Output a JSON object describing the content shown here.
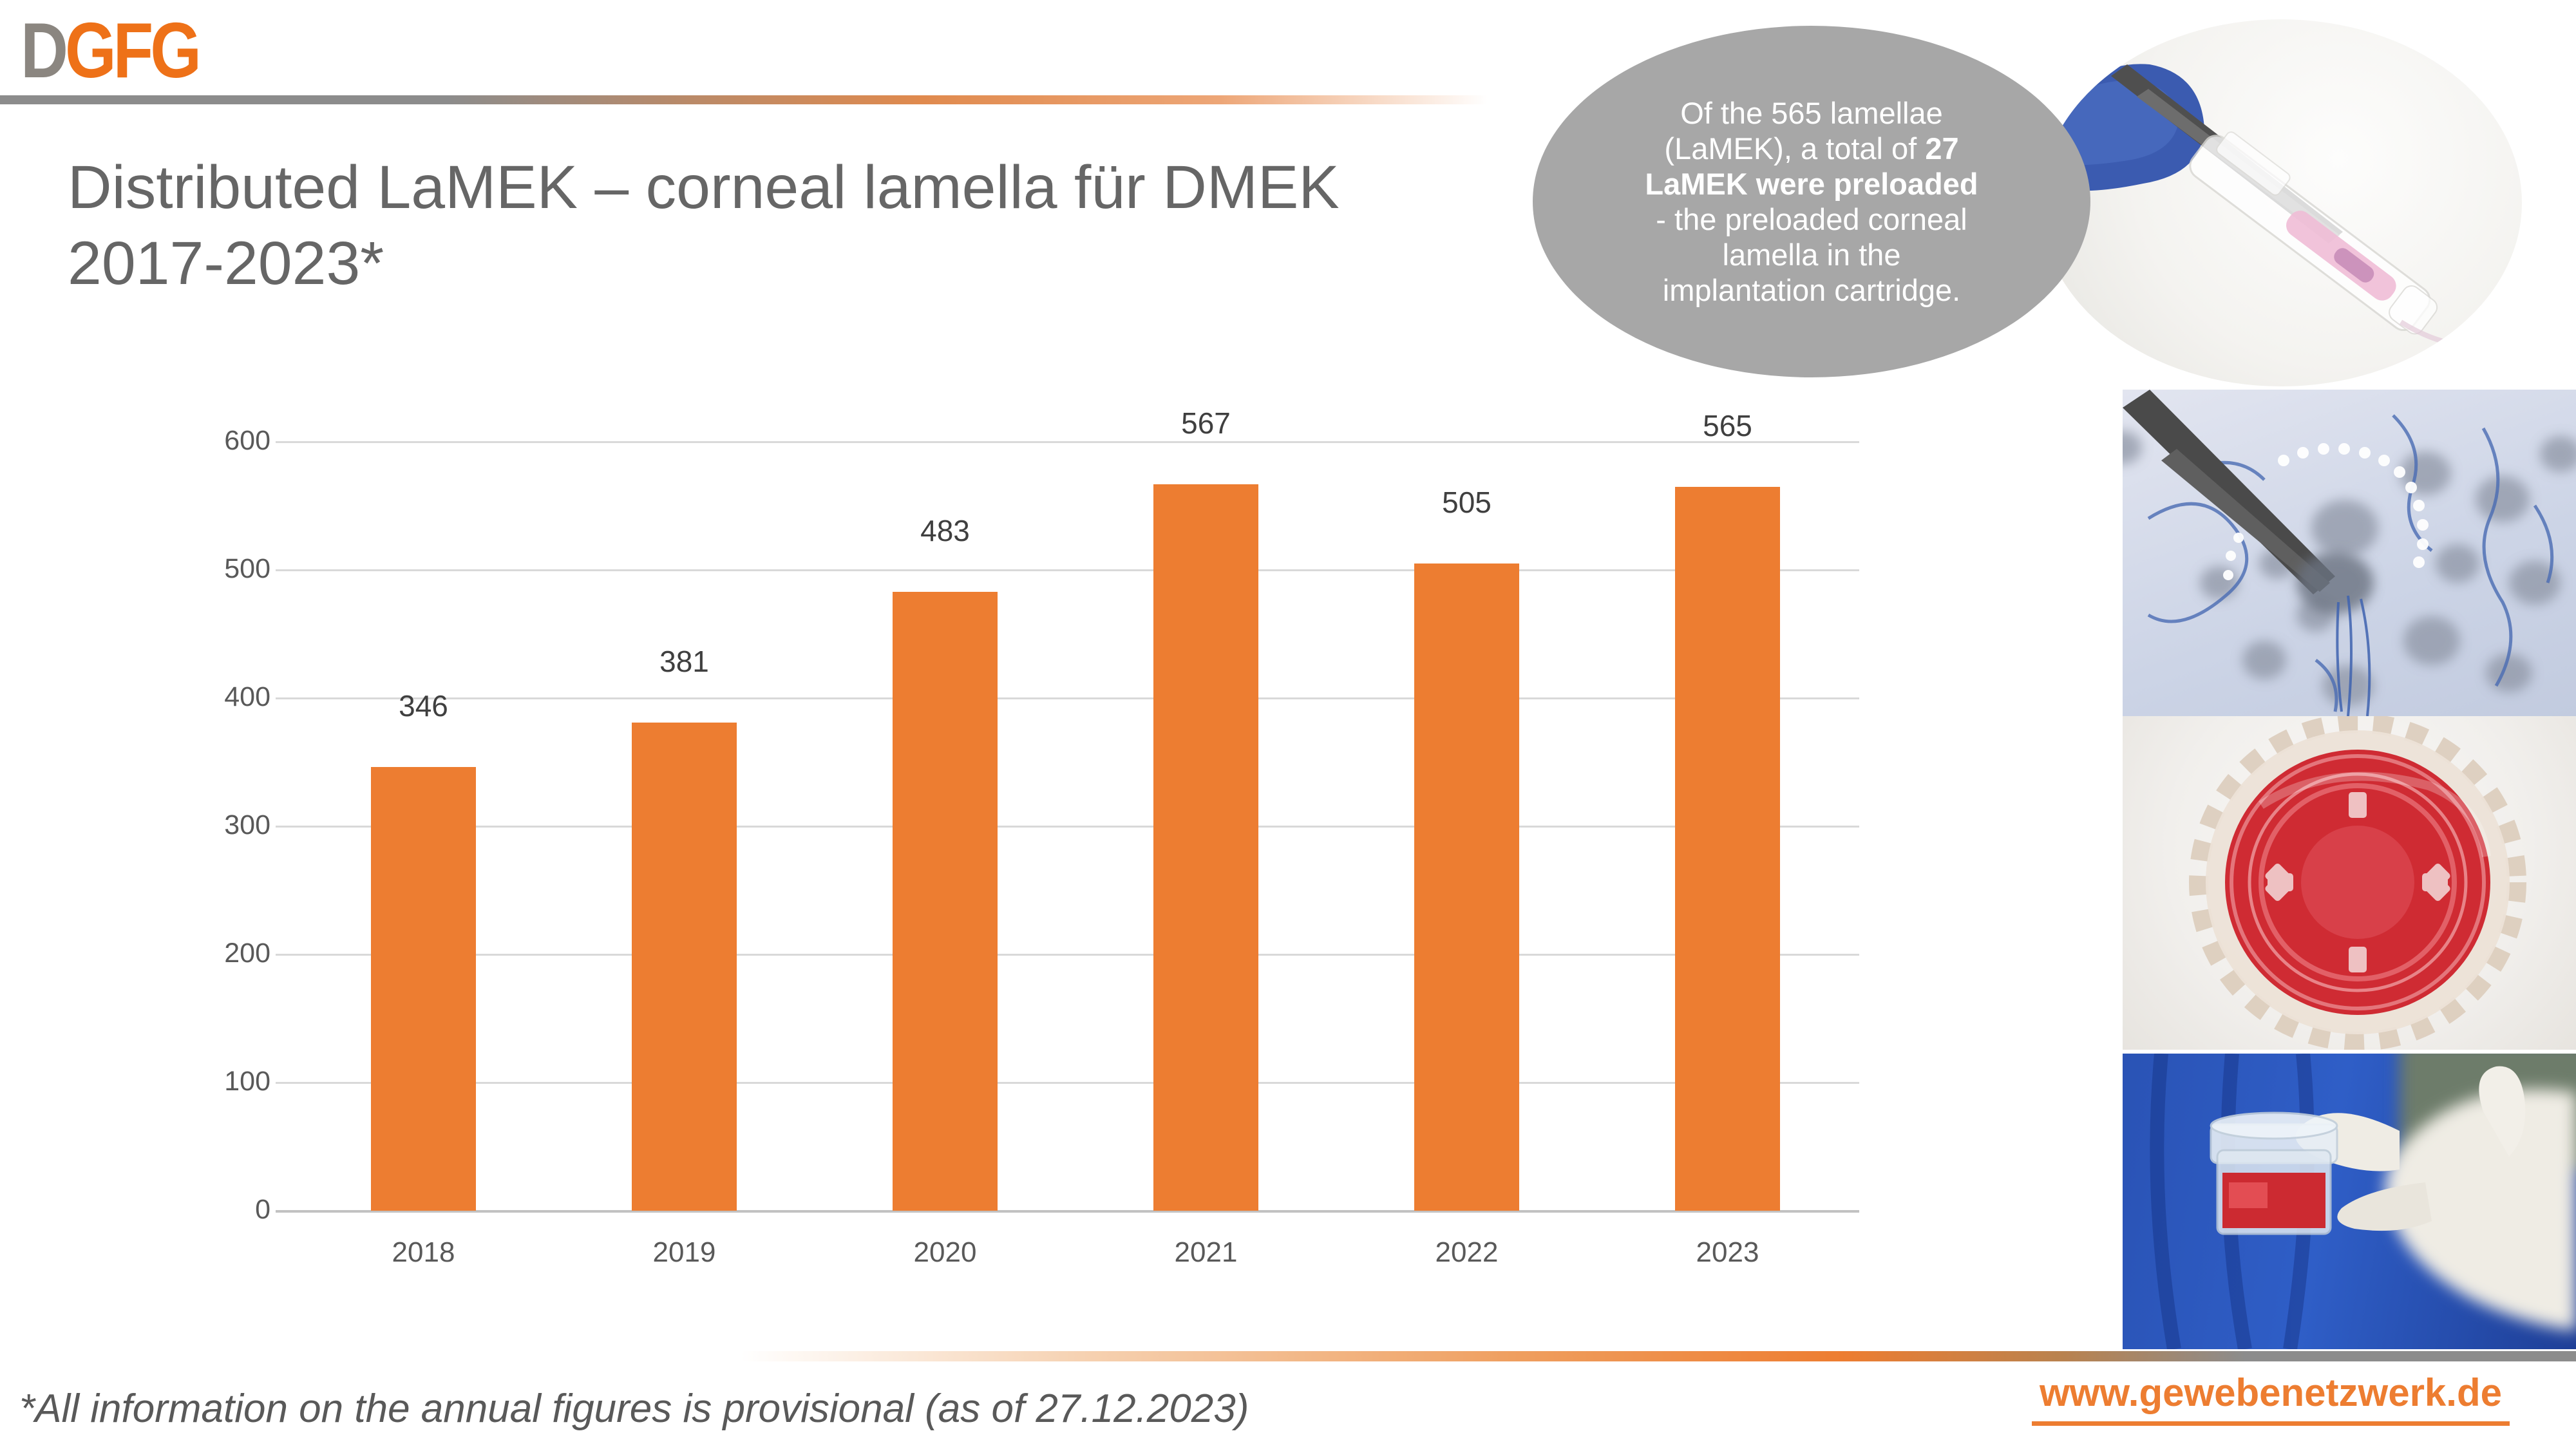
{
  "logo": {
    "d": "D",
    "gfg": "GFG"
  },
  "title": {
    "line1": "Distributed LaMEK – corneal lamella für DMEK",
    "line2": "2017-2023*"
  },
  "bubble": {
    "line1": "Of the 565 lamellae",
    "line2_normal": "(LaMEK), a total of ",
    "line2_bold": "27",
    "line3_bold": "LaMEK were preloaded",
    "line4": "- the preloaded corneal",
    "line5": "lamella in the",
    "line6": "implantation cartridge."
  },
  "chart_data": {
    "type": "bar",
    "title": "",
    "categories": [
      "2018",
      "2019",
      "2020",
      "2021",
      "2022",
      "2023"
    ],
    "values": [
      346,
      381,
      483,
      567,
      505,
      565
    ],
    "xlabel": "",
    "ylabel": "",
    "ylim": [
      0,
      600
    ],
    "ytick_step": 100,
    "yticks": [
      0,
      100,
      200,
      300,
      400,
      500,
      600
    ],
    "grid": true,
    "legend": "none",
    "value_labels": true,
    "bar_color": "#ed7d31"
  },
  "images": {
    "top_right_ellipse": "preloaded-implantation-cartridge-photo",
    "middle_1": "corneal-lamella-forceps-photo",
    "middle_2": "red-culture-dish-photo",
    "bottom": "gloved-hand-tissue-container-photo"
  },
  "footer": {
    "note": "*All information on the annual figures is provisional (as of 27.12.2023)",
    "url": "www.gewebenetzwerk.de"
  },
  "colors": {
    "accent_orange": "#ed7d31",
    "logo_orange": "#ee7118",
    "logo_gray": "#8b8680",
    "title_gray": "#666666",
    "bubble_gray": "#a7a7a7",
    "text_gray": "#595959",
    "gridline_gray": "#d9d9d9",
    "rule_gray": "#8c8c8c"
  }
}
